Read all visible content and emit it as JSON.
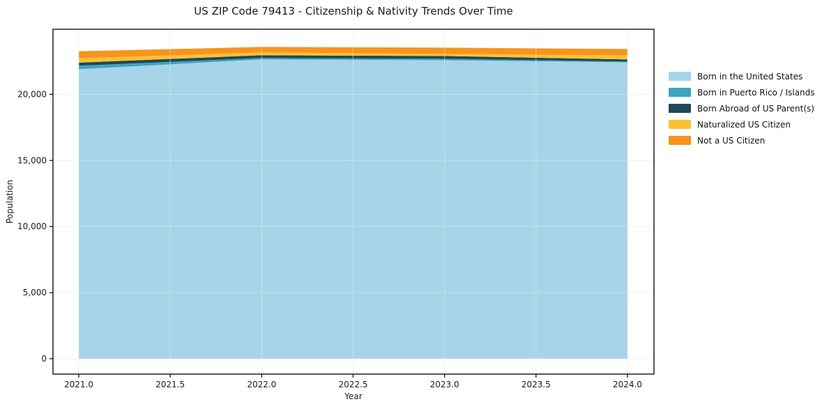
{
  "chart_data": {
    "type": "area",
    "stacked": true,
    "title": "US ZIP Code 79413 - Citizenship & Nativity Trends Over Time",
    "xlabel": "Year",
    "ylabel": "Population",
    "x": [
      2021,
      2022,
      2023,
      2024
    ],
    "series": [
      {
        "name": "Born in the United States",
        "color": "#a7d4e8",
        "values": [
          21900,
          22640,
          22580,
          22420
        ]
      },
      {
        "name": "Born in Puerto Rico / Islands",
        "color": "#3da4c0",
        "values": [
          265,
          105,
          105,
          55
        ]
      },
      {
        "name": "Born Abroad of US Parent(s)",
        "color": "#1e4759",
        "values": [
          230,
          210,
          210,
          160
        ]
      },
      {
        "name": "Naturalized US Citizen",
        "color": "#fcc130",
        "values": [
          330,
          210,
          160,
          315
        ]
      },
      {
        "name": "Not a US Citizen",
        "color": "#f6941e",
        "values": [
          530,
          420,
          475,
          475
        ]
      }
    ],
    "xlim": [
      2020.859,
      2024.145
    ],
    "ylim": [
      -1160,
      24920
    ],
    "xticks": {
      "values": [
        2021.0,
        2021.5,
        2022.0,
        2022.5,
        2023.0,
        2023.5,
        2024.0
      ],
      "labels": [
        "2021.0",
        "2021.5",
        "2022.0",
        "2022.5",
        "2023.0",
        "2023.5",
        "2024.0"
      ]
    },
    "yticks": {
      "values": [
        0,
        5000,
        10000,
        15000,
        20000
      ],
      "labels": [
        "0",
        "5,000",
        "10,000",
        "15,000",
        "20,000"
      ]
    },
    "grid": true,
    "grid_color": "#e6e6e6",
    "legend_position": "right",
    "axis_color": "#000000",
    "text_color": "#1a1a1a",
    "background_color": "#ffffff"
  }
}
